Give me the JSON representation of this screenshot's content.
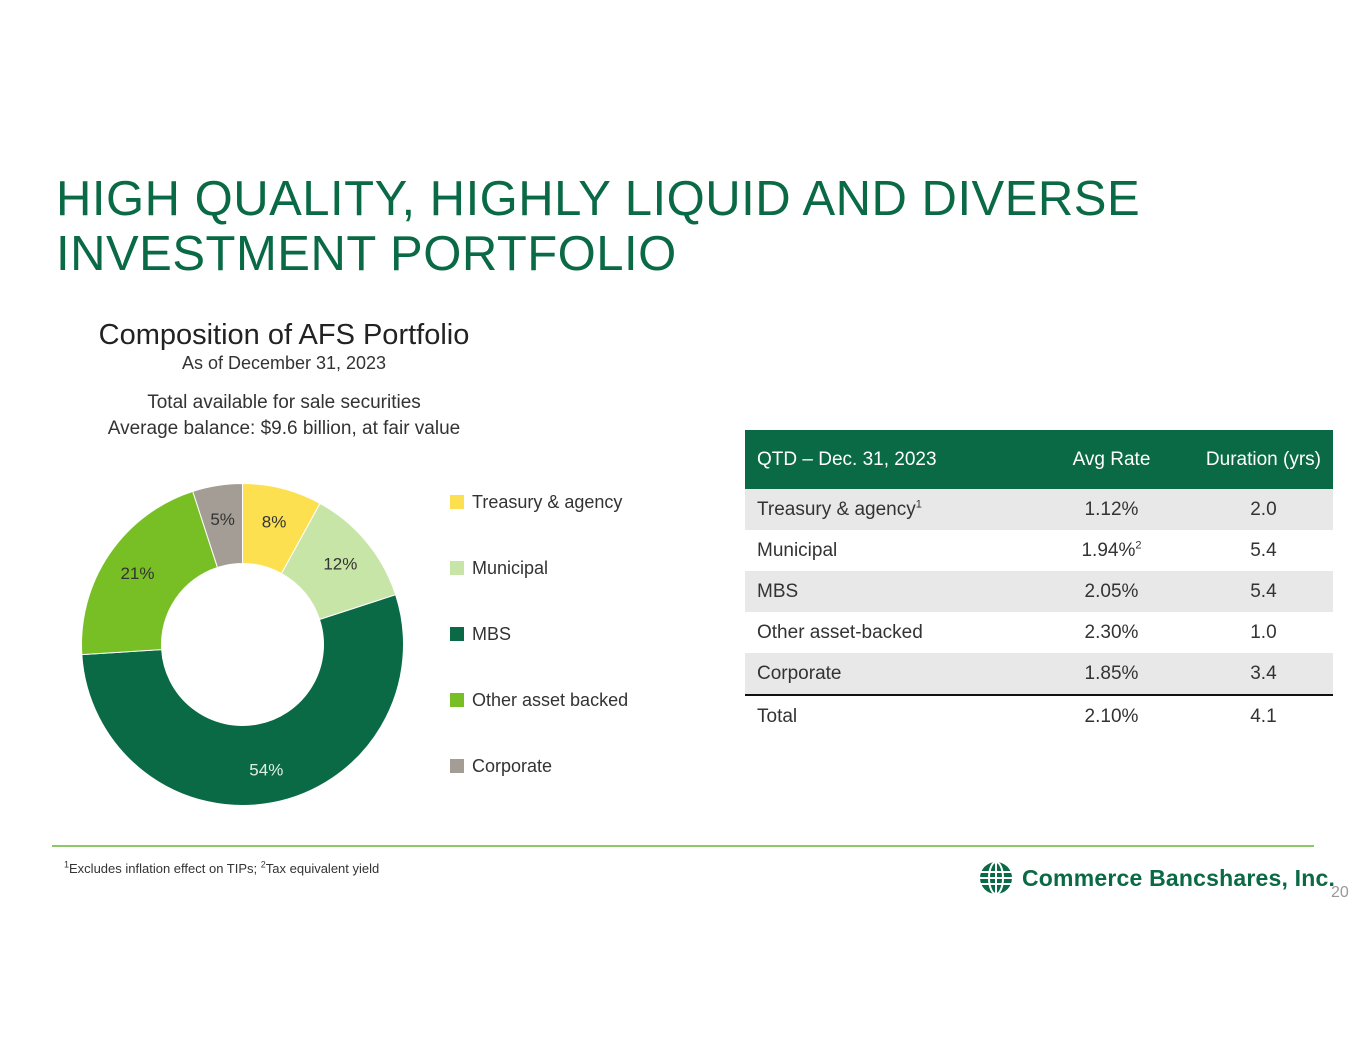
{
  "title": {
    "line1": "HIGH QUALITY, HIGHLY LIQUID AND DIVERSE",
    "line2": "INVESTMENT PORTFOLIO"
  },
  "chart_heading": {
    "title": "Composition of AFS Portfolio",
    "subtitle": "As of December 31, 2023",
    "note_line1": "Total available for sale securities",
    "note_line2": "Average balance: $9.6 billion, at fair value"
  },
  "chart_data": {
    "type": "pie",
    "title": "Composition of AFS Portfolio",
    "donut": true,
    "categories": [
      "Treasury & agency",
      "Municipal",
      "MBS",
      "Other asset backed",
      "Corporate"
    ],
    "values": [
      8,
      12,
      54,
      21,
      5
    ],
    "labels": [
      "8%",
      "12%",
      "54%",
      "21%",
      "5%"
    ],
    "colors": [
      "#fde04f",
      "#c7e5a6",
      "#0a6a45",
      "#78bf26",
      "#a39d95"
    ],
    "label_colors": [
      "#333333",
      "#333333",
      "#e0efe6",
      "#333333",
      "#333333"
    ],
    "legend_position": "right"
  },
  "table": {
    "headers": [
      "QTD – Dec. 31, 2023",
      "Avg Rate",
      "Duration (yrs)"
    ],
    "rows": [
      {
        "name": "Treasury & agency",
        "sup": "1",
        "rate": "1.12%",
        "rate_sup": "",
        "duration": "2.0"
      },
      {
        "name": "Municipal",
        "sup": "",
        "rate": "1.94%",
        "rate_sup": "2",
        "duration": "5.4"
      },
      {
        "name": "MBS",
        "sup": "",
        "rate": "2.05%",
        "rate_sup": "",
        "duration": "5.4"
      },
      {
        "name": "Other asset-backed",
        "sup": "",
        "rate": "2.30%",
        "rate_sup": "",
        "duration": "1.0"
      },
      {
        "name": "Corporate",
        "sup": "",
        "rate": "1.85%",
        "rate_sup": "",
        "duration": "3.4"
      },
      {
        "name": "Total",
        "sup": "",
        "rate": "2.10%",
        "rate_sup": "",
        "duration": "4.1"
      }
    ]
  },
  "footnote": {
    "sup1": "1",
    "text1": "Excludes inflation effect on TIPs; ",
    "sup2": "2",
    "text2": "Tax equivalent yield"
  },
  "logo": {
    "text": "Commerce Bancshares, Inc.",
    "icon": "globe-icon"
  },
  "page_number": "20"
}
